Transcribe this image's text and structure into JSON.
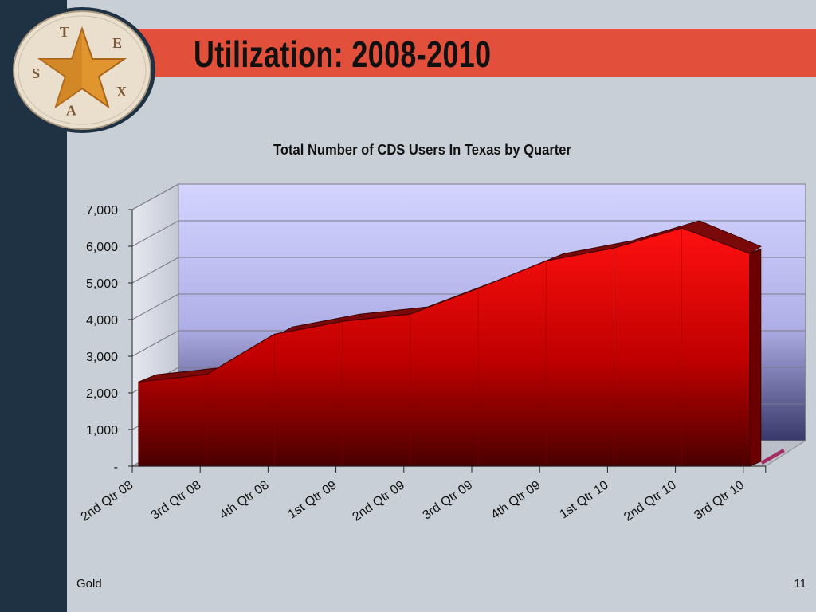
{
  "slide": {
    "title": "Utilization: 2008-2010",
    "footer_left": "Gold",
    "page_number": "11"
  },
  "seal": {
    "letters": [
      "T",
      "E",
      "X",
      "A",
      "S"
    ],
    "colors": {
      "ring": "#e8dcc8",
      "star": "#e0952e",
      "star_shadow": "#b86e1c",
      "letters": "#7a5a3a"
    }
  },
  "colors": {
    "sidebar": "#1e3244",
    "title_bar": "#e2503c",
    "background": "#c9cfd6",
    "area_top": "#ff1a1a",
    "area_bottom": "#5a0000",
    "area_edge": "#8b0000",
    "plot_back_top": "#ccccff",
    "plot_back_bottom": "#3c3c6e"
  },
  "chart_data": {
    "type": "area",
    "title": "Total Number of CDS Users In Texas by Quarter",
    "categories": [
      "2nd Qtr 08",
      "3rd Qtr 08",
      "4th Qtr 08",
      "1st Qtr 09",
      "2nd Qtr 09",
      "3rd Qtr 09",
      "4th Qtr 09",
      "1st Qtr 10",
      "2nd Qtr 10",
      "3rd Qtr 10"
    ],
    "values": [
      2300,
      2500,
      3600,
      3950,
      4150,
      4850,
      5600,
      5950,
      6500,
      5800
    ],
    "ylim": [
      0,
      7000
    ],
    "yticks": [
      0,
      1000,
      2000,
      3000,
      4000,
      5000,
      6000,
      7000
    ],
    "ytick_labels": [
      "-",
      "1,000",
      "2,000",
      "3,000",
      "4,000",
      "5,000",
      "6,000",
      "7,000"
    ],
    "grid": true,
    "style": "3d"
  }
}
